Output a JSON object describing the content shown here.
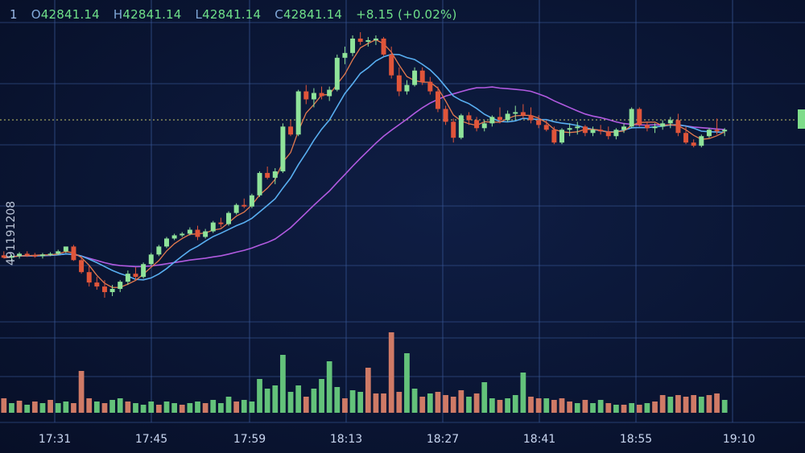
{
  "header": {
    "interval": "1",
    "open_label": "O",
    "open": "42841.14",
    "high_label": "H",
    "high": "42841.14",
    "low_label": "L",
    "low": "42841.14",
    "close_label": "C",
    "close": "42841.14",
    "change": "+8.15 (+0.02%)"
  },
  "watermark_text": "491191208",
  "colors": {
    "up": "#8fe39a",
    "down": "#e0553a",
    "vol_up": "#63c27a",
    "vol_down": "#cf7a66",
    "ma_fast": "#e57a4e",
    "ma_mid": "#58aef0",
    "ma_slow": "#b15ae0",
    "grid": "#3a5a9a"
  },
  "chart_data": {
    "type": "candlestick",
    "x_ticks": [
      "17:31",
      "17:45",
      "17:59",
      "18:13",
      "18:27",
      "18:41",
      "18:55",
      "19:10"
    ],
    "candles": [
      {
        "o": 1,
        "h": 6,
        "l": -3,
        "c": -2
      },
      {
        "o": -2,
        "h": 2,
        "l": -6,
        "c": 0
      },
      {
        "o": 0,
        "h": 5,
        "l": -3,
        "c": 3
      },
      {
        "o": 3,
        "h": 6,
        "l": -1,
        "c": 1
      },
      {
        "o": 1,
        "h": 4,
        "l": -2,
        "c": 0
      },
      {
        "o": 0,
        "h": 4,
        "l": -3,
        "c": 2
      },
      {
        "o": 2,
        "h": 5,
        "l": 0,
        "c": 3
      },
      {
        "o": 3,
        "h": 8,
        "l": 1,
        "c": 6
      },
      {
        "o": 6,
        "h": 10,
        "l": 4,
        "c": 12
      },
      {
        "o": 12,
        "h": 14,
        "l": -6,
        "c": -5
      },
      {
        "o": -5,
        "h": 0,
        "l": -22,
        "c": -20
      },
      {
        "o": -20,
        "h": -12,
        "l": -38,
        "c": -33
      },
      {
        "o": -33,
        "h": -26,
        "l": -42,
        "c": -38
      },
      {
        "o": -38,
        "h": -30,
        "l": -52,
        "c": -45
      },
      {
        "o": -45,
        "h": -36,
        "l": -50,
        "c": -41
      },
      {
        "o": -41,
        "h": -30,
        "l": -45,
        "c": -32
      },
      {
        "o": -32,
        "h": -18,
        "l": -36,
        "c": -22
      },
      {
        "o": -22,
        "h": -14,
        "l": -30,
        "c": -26
      },
      {
        "o": -26,
        "h": -8,
        "l": -28,
        "c": -10
      },
      {
        "o": -10,
        "h": 4,
        "l": -12,
        "c": 2
      },
      {
        "o": 2,
        "h": 14,
        "l": 0,
        "c": 12
      },
      {
        "o": 12,
        "h": 24,
        "l": 10,
        "c": 22
      },
      {
        "o": 22,
        "h": 28,
        "l": 20,
        "c": 26
      },
      {
        "o": 26,
        "h": 30,
        "l": 24,
        "c": 28
      },
      {
        "o": 28,
        "h": 36,
        "l": 26,
        "c": 33
      },
      {
        "o": 33,
        "h": 38,
        "l": 20,
        "c": 24
      },
      {
        "o": 24,
        "h": 34,
        "l": 22,
        "c": 31
      },
      {
        "o": 31,
        "h": 44,
        "l": 29,
        "c": 42
      },
      {
        "o": 42,
        "h": 48,
        "l": 36,
        "c": 40
      },
      {
        "o": 40,
        "h": 56,
        "l": 38,
        "c": 54
      },
      {
        "o": 54,
        "h": 66,
        "l": 52,
        "c": 64
      },
      {
        "o": 64,
        "h": 72,
        "l": 60,
        "c": 62
      },
      {
        "o": 62,
        "h": 78,
        "l": 60,
        "c": 76
      },
      {
        "o": 76,
        "h": 106,
        "l": 74,
        "c": 104
      },
      {
        "o": 104,
        "h": 112,
        "l": 96,
        "c": 98
      },
      {
        "o": 98,
        "h": 110,
        "l": 90,
        "c": 106
      },
      {
        "o": 106,
        "h": 166,
        "l": 104,
        "c": 162
      },
      {
        "o": 162,
        "h": 170,
        "l": 150,
        "c": 152
      },
      {
        "o": 152,
        "h": 208,
        "l": 150,
        "c": 206
      },
      {
        "o": 206,
        "h": 214,
        "l": 190,
        "c": 196
      },
      {
        "o": 196,
        "h": 210,
        "l": 186,
        "c": 204
      },
      {
        "o": 204,
        "h": 212,
        "l": 196,
        "c": 200
      },
      {
        "o": 200,
        "h": 212,
        "l": 194,
        "c": 208
      },
      {
        "o": 208,
        "h": 252,
        "l": 206,
        "c": 248
      },
      {
        "o": 248,
        "h": 262,
        "l": 240,
        "c": 254
      },
      {
        "o": 254,
        "h": 276,
        "l": 250,
        "c": 272
      },
      {
        "o": 272,
        "h": 280,
        "l": 264,
        "c": 268
      },
      {
        "o": 268,
        "h": 274,
        "l": 262,
        "c": 270
      },
      {
        "o": 270,
        "h": 276,
        "l": 264,
        "c": 272
      },
      {
        "o": 272,
        "h": 274,
        "l": 250,
        "c": 252
      },
      {
        "o": 252,
        "h": 262,
        "l": 222,
        "c": 226
      },
      {
        "o": 226,
        "h": 236,
        "l": 200,
        "c": 206
      },
      {
        "o": 206,
        "h": 220,
        "l": 202,
        "c": 214
      },
      {
        "o": 214,
        "h": 236,
        "l": 212,
        "c": 232
      },
      {
        "o": 232,
        "h": 236,
        "l": 214,
        "c": 218
      },
      {
        "o": 218,
        "h": 224,
        "l": 202,
        "c": 206
      },
      {
        "o": 206,
        "h": 212,
        "l": 180,
        "c": 184
      },
      {
        "o": 184,
        "h": 188,
        "l": 164,
        "c": 168
      },
      {
        "o": 168,
        "h": 172,
        "l": 142,
        "c": 148
      },
      {
        "o": 148,
        "h": 178,
        "l": 146,
        "c": 176
      },
      {
        "o": 176,
        "h": 180,
        "l": 164,
        "c": 170
      },
      {
        "o": 170,
        "h": 174,
        "l": 156,
        "c": 160
      },
      {
        "o": 160,
        "h": 170,
        "l": 156,
        "c": 166
      },
      {
        "o": 166,
        "h": 176,
        "l": 162,
        "c": 174
      },
      {
        "o": 174,
        "h": 186,
        "l": 166,
        "c": 170
      },
      {
        "o": 170,
        "h": 182,
        "l": 168,
        "c": 178
      },
      {
        "o": 178,
        "h": 188,
        "l": 170,
        "c": 180
      },
      {
        "o": 180,
        "h": 190,
        "l": 172,
        "c": 176
      },
      {
        "o": 176,
        "h": 186,
        "l": 166,
        "c": 170
      },
      {
        "o": 170,
        "h": 176,
        "l": 160,
        "c": 164
      },
      {
        "o": 164,
        "h": 170,
        "l": 156,
        "c": 158
      },
      {
        "o": 158,
        "h": 162,
        "l": 140,
        "c": 142
      },
      {
        "o": 142,
        "h": 160,
        "l": 140,
        "c": 158
      },
      {
        "o": 158,
        "h": 166,
        "l": 150,
        "c": 160
      },
      {
        "o": 160,
        "h": 168,
        "l": 152,
        "c": 162
      },
      {
        "o": 162,
        "h": 164,
        "l": 150,
        "c": 154
      },
      {
        "o": 154,
        "h": 162,
        "l": 150,
        "c": 158
      },
      {
        "o": 158,
        "h": 164,
        "l": 152,
        "c": 156
      },
      {
        "o": 156,
        "h": 162,
        "l": 146,
        "c": 150
      },
      {
        "o": 150,
        "h": 160,
        "l": 146,
        "c": 158
      },
      {
        "o": 158,
        "h": 166,
        "l": 154,
        "c": 162
      },
      {
        "o": 162,
        "h": 186,
        "l": 160,
        "c": 184
      },
      {
        "o": 184,
        "h": 186,
        "l": 162,
        "c": 164
      },
      {
        "o": 164,
        "h": 168,
        "l": 156,
        "c": 160
      },
      {
        "o": 160,
        "h": 166,
        "l": 154,
        "c": 162
      },
      {
        "o": 162,
        "h": 170,
        "l": 158,
        "c": 166
      },
      {
        "o": 166,
        "h": 174,
        "l": 160,
        "c": 170
      },
      {
        "o": 170,
        "h": 178,
        "l": 150,
        "c": 154
      },
      {
        "o": 154,
        "h": 162,
        "l": 140,
        "c": 142
      },
      {
        "o": 142,
        "h": 146,
        "l": 136,
        "c": 138
      },
      {
        "o": 138,
        "h": 152,
        "l": 136,
        "c": 150
      },
      {
        "o": 150,
        "h": 160,
        "l": 148,
        "c": 158
      },
      {
        "o": 158,
        "h": 172,
        "l": 152,
        "c": 156
      },
      {
        "o": 156,
        "h": 160,
        "l": 150,
        "c": 158
      }
    ],
    "volume": [
      {
        "v": 18,
        "up": false
      },
      {
        "v": 12,
        "up": true
      },
      {
        "v": 15,
        "up": false
      },
      {
        "v": 10,
        "up": true
      },
      {
        "v": 14,
        "up": false
      },
      {
        "v": 12,
        "up": true
      },
      {
        "v": 16,
        "up": false
      },
      {
        "v": 12,
        "up": true
      },
      {
        "v": 14,
        "up": true
      },
      {
        "v": 12,
        "up": false
      },
      {
        "v": 52,
        "up": false
      },
      {
        "v": 18,
        "up": false
      },
      {
        "v": 14,
        "up": true
      },
      {
        "v": 12,
        "up": false
      },
      {
        "v": 16,
        "up": true
      },
      {
        "v": 18,
        "up": true
      },
      {
        "v": 14,
        "up": false
      },
      {
        "v": 12,
        "up": true
      },
      {
        "v": 10,
        "up": true
      },
      {
        "v": 14,
        "up": true
      },
      {
        "v": 10,
        "up": false
      },
      {
        "v": 14,
        "up": true
      },
      {
        "v": 12,
        "up": true
      },
      {
        "v": 10,
        "up": false
      },
      {
        "v": 12,
        "up": true
      },
      {
        "v": 14,
        "up": true
      },
      {
        "v": 12,
        "up": false
      },
      {
        "v": 16,
        "up": true
      },
      {
        "v": 12,
        "up": true
      },
      {
        "v": 20,
        "up": true
      },
      {
        "v": 14,
        "up": false
      },
      {
        "v": 16,
        "up": true
      },
      {
        "v": 14,
        "up": true
      },
      {
        "v": 42,
        "up": true
      },
      {
        "v": 30,
        "up": true
      },
      {
        "v": 34,
        "up": true
      },
      {
        "v": 72,
        "up": true
      },
      {
        "v": 26,
        "up": true
      },
      {
        "v": 34,
        "up": true
      },
      {
        "v": 20,
        "up": false
      },
      {
        "v": 30,
        "up": true
      },
      {
        "v": 42,
        "up": true
      },
      {
        "v": 64,
        "up": true
      },
      {
        "v": 32,
        "up": true
      },
      {
        "v": 18,
        "up": false
      },
      {
        "v": 28,
        "up": true
      },
      {
        "v": 26,
        "up": true
      },
      {
        "v": 56,
        "up": false
      },
      {
        "v": 24,
        "up": false
      },
      {
        "v": 24,
        "up": false
      },
      {
        "v": 100,
        "up": false
      },
      {
        "v": 26,
        "up": false
      },
      {
        "v": 74,
        "up": true
      },
      {
        "v": 30,
        "up": true
      },
      {
        "v": 20,
        "up": false
      },
      {
        "v": 24,
        "up": true
      },
      {
        "v": 26,
        "up": false
      },
      {
        "v": 22,
        "up": false
      },
      {
        "v": 20,
        "up": false
      },
      {
        "v": 28,
        "up": false
      },
      {
        "v": 20,
        "up": true
      },
      {
        "v": 24,
        "up": false
      },
      {
        "v": 38,
        "up": true
      },
      {
        "v": 18,
        "up": true
      },
      {
        "v": 16,
        "up": false
      },
      {
        "v": 18,
        "up": true
      },
      {
        "v": 22,
        "up": true
      },
      {
        "v": 50,
        "up": true
      },
      {
        "v": 20,
        "up": false
      },
      {
        "v": 18,
        "up": false
      },
      {
        "v": 18,
        "up": true
      },
      {
        "v": 16,
        "up": false
      },
      {
        "v": 18,
        "up": false
      },
      {
        "v": 14,
        "up": false
      },
      {
        "v": 12,
        "up": true
      },
      {
        "v": 16,
        "up": false
      },
      {
        "v": 12,
        "up": true
      },
      {
        "v": 16,
        "up": true
      },
      {
        "v": 12,
        "up": false
      },
      {
        "v": 10,
        "up": true
      },
      {
        "v": 10,
        "up": false
      },
      {
        "v": 12,
        "up": true
      },
      {
        "v": 10,
        "up": false
      },
      {
        "v": 12,
        "up": true
      },
      {
        "v": 14,
        "up": false
      },
      {
        "v": 22,
        "up": false
      },
      {
        "v": 20,
        "up": true
      },
      {
        "v": 22,
        "up": false
      },
      {
        "v": 20,
        "up": false
      },
      {
        "v": 22,
        "up": false
      },
      {
        "v": 20,
        "up": true
      },
      {
        "v": 22,
        "up": false
      },
      {
        "v": 24,
        "up": false
      },
      {
        "v": 16,
        "up": true
      }
    ]
  }
}
